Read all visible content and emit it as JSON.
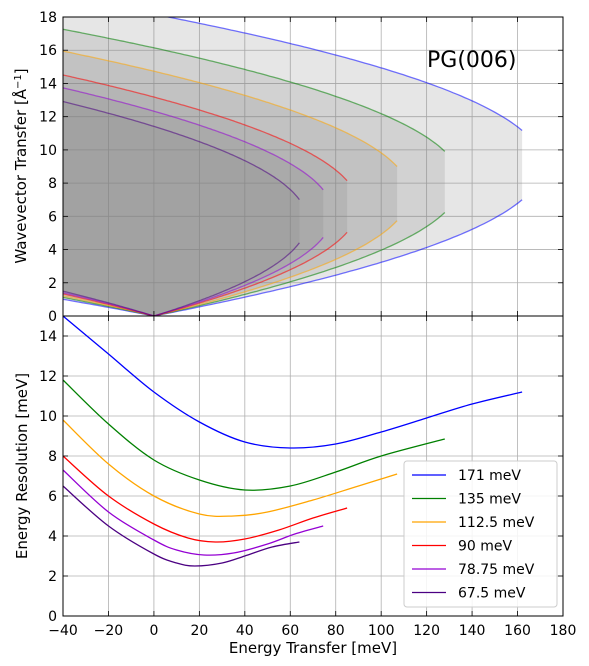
{
  "chart_data": [
    {
      "type": "area",
      "annotation": "PG(006)",
      "ylabel": "Wavevector Transfer [Å",
      "ylabel_sup": "−1",
      "ylabel_end": "]",
      "xlim": [
        -40,
        180
      ],
      "ylim": [
        0,
        18
      ],
      "xticks": [
        -40,
        -20,
        0,
        20,
        40,
        60,
        80,
        100,
        120,
        140,
        160,
        180
      ],
      "yticks": [
        0,
        2,
        4,
        6,
        8,
        10,
        12,
        14,
        16,
        18
      ],
      "grid": true,
      "series": [
        {
          "name": "171 meV",
          "color": "#0000ff",
          "Ei": 171,
          "Emax": 162
        },
        {
          "name": "135 meV",
          "color": "#008000",
          "Ei": 135,
          "Emax": 128
        },
        {
          "name": "112.5 meV",
          "color": "#ffa500",
          "Ei": 112.5,
          "Emax": 107
        },
        {
          "name": "90 meV",
          "color": "#ff0000",
          "Ei": 90,
          "Emax": 85
        },
        {
          "name": "78.75 meV",
          "color": "#9400d3",
          "Ei": 78.75,
          "Emax": 74.5
        },
        {
          "name": "67.5 meV",
          "color": "#4b0082",
          "Ei": 67.5,
          "Emax": 64
        }
      ]
    },
    {
      "type": "line",
      "xlabel": "Energy Transfer [meV]",
      "ylabel": "Energy Resolution [meV]",
      "xlim": [
        -40,
        180
      ],
      "ylim": [
        0,
        15
      ],
      "xticks": [
        -40,
        -20,
        0,
        20,
        40,
        60,
        80,
        100,
        120,
        140,
        160,
        180
      ],
      "yticks": [
        0,
        2,
        4,
        6,
        8,
        10,
        12,
        14
      ],
      "grid": true,
      "legend": "lower-right",
      "series": [
        {
          "name": "171 meV",
          "color": "#0000ff",
          "x": [
            -40,
            -20,
            0,
            20,
            40,
            60,
            80,
            100,
            120,
            140,
            162
          ],
          "y": [
            15.0,
            13.1,
            11.2,
            9.7,
            8.7,
            8.4,
            8.6,
            9.2,
            9.9,
            10.6,
            11.2
          ]
        },
        {
          "name": "135 meV",
          "color": "#008000",
          "x": [
            -40,
            -20,
            0,
            20,
            40,
            60,
            80,
            100,
            128
          ],
          "y": [
            11.8,
            9.6,
            7.8,
            6.8,
            6.3,
            6.5,
            7.2,
            8.0,
            8.85
          ]
        },
        {
          "name": "112.5 meV",
          "color": "#ffa500",
          "x": [
            -40,
            -20,
            0,
            20,
            35,
            50,
            70,
            90,
            107
          ],
          "y": [
            9.8,
            7.6,
            6.0,
            5.1,
            5.0,
            5.2,
            5.8,
            6.5,
            7.1
          ]
        },
        {
          "name": "90 meV",
          "color": "#ff0000",
          "x": [
            -40,
            -20,
            0,
            15,
            27,
            40,
            55,
            70,
            85
          ],
          "y": [
            8.0,
            6.0,
            4.6,
            3.9,
            3.7,
            3.85,
            4.3,
            4.9,
            5.4
          ]
        },
        {
          "name": "78.75 meV",
          "color": "#9400d3",
          "x": [
            -40,
            -20,
            0,
            10,
            22,
            35,
            50,
            62,
            74.5
          ],
          "y": [
            7.3,
            5.2,
            3.8,
            3.3,
            3.05,
            3.15,
            3.6,
            4.1,
            4.5
          ]
        },
        {
          "name": "67.5 meV",
          "color": "#4b0082",
          "x": [
            -40,
            -20,
            0,
            10,
            18,
            30,
            40,
            52,
            64
          ],
          "y": [
            6.5,
            4.5,
            3.1,
            2.65,
            2.5,
            2.65,
            3.0,
            3.45,
            3.7
          ]
        }
      ]
    }
  ]
}
